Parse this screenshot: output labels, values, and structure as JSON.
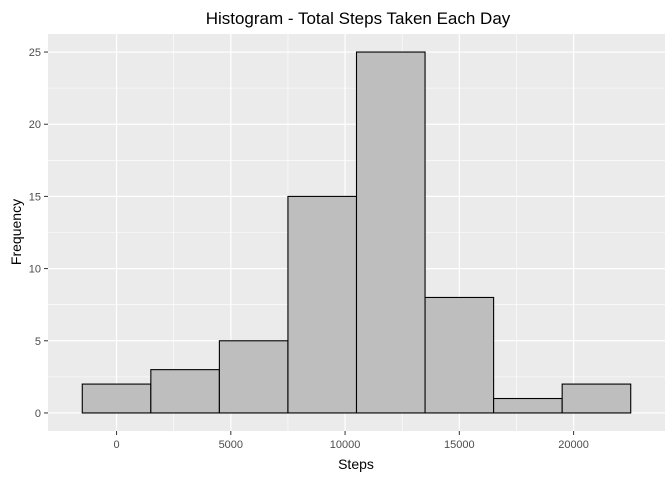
{
  "chart_data": {
    "type": "bar",
    "title": "Histogram - Total Steps Taken Each Day",
    "xlabel": "Steps",
    "ylabel": "Frequency",
    "bin_width": 3000,
    "bins": [
      {
        "x_start": -1500,
        "x_end": 1500,
        "count": 2
      },
      {
        "x_start": 1500,
        "x_end": 4500,
        "count": 3
      },
      {
        "x_start": 4500,
        "x_end": 7500,
        "count": 5
      },
      {
        "x_start": 7500,
        "x_end": 10500,
        "count": 15
      },
      {
        "x_start": 10500,
        "x_end": 13500,
        "count": 25
      },
      {
        "x_start": 13500,
        "x_end": 16500,
        "count": 8
      },
      {
        "x_start": 16500,
        "x_end": 19500,
        "count": 1
      },
      {
        "x_start": 19500,
        "x_end": 22500,
        "count": 2
      }
    ],
    "xlim": [
      -3000,
      24000
    ],
    "ylim": [
      -1.25,
      26.25
    ],
    "x_ticks": [
      0,
      5000,
      10000,
      15000,
      20000
    ],
    "x_tick_labels": [
      "0",
      "5000",
      "10000",
      "15000",
      "20000"
    ],
    "y_ticks": [
      0,
      5,
      10,
      15,
      20,
      25
    ],
    "y_tick_labels": [
      "0",
      "5",
      "10",
      "15",
      "20",
      "25"
    ],
    "grid": true,
    "colors": {
      "panel_background": "#ebebeb",
      "grid_major": "#ffffff",
      "bar_fill": "#bebebe",
      "bar_stroke": "#000000"
    }
  }
}
